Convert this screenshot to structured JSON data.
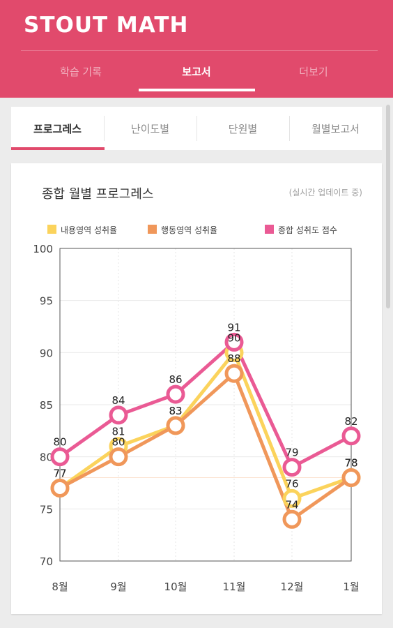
{
  "app": {
    "title": "STOUT MATH"
  },
  "main_tabs": [
    {
      "label": "학습 기록"
    },
    {
      "label": "보고서"
    },
    {
      "label": "더보기"
    }
  ],
  "sub_tabs": [
    {
      "label": "프로그레스"
    },
    {
      "label": "난이도별"
    },
    {
      "label": "단원별"
    },
    {
      "label": "월별보고서"
    }
  ],
  "card": {
    "title": "종합 월별 프로그레스",
    "subtitle": "(실시간 업데이트 중)"
  },
  "colors": {
    "brand": "#e14a6c",
    "content": "#fbd35c",
    "behavior": "#f0975a",
    "total": "#ea5a94"
  },
  "chart_data": {
    "type": "line",
    "categories": [
      "8월",
      "9월",
      "10월",
      "11월",
      "12월",
      "1월"
    ],
    "ylim": [
      70,
      100
    ],
    "yticks": [
      70,
      75,
      80,
      85,
      90,
      95,
      100
    ],
    "legend_position": "top",
    "grid": true,
    "series": [
      {
        "name": "내용영역 성취율",
        "color": "#fbd35c",
        "values": [
          77,
          81,
          83,
          90,
          76,
          78
        ]
      },
      {
        "name": "행동영역 성취율",
        "color": "#f0975a",
        "values": [
          77,
          80,
          83,
          88,
          74,
          78
        ]
      },
      {
        "name": "종합 성취도 점수",
        "color": "#ea5a94",
        "values": [
          80,
          84,
          86,
          91,
          79,
          82
        ]
      }
    ]
  }
}
